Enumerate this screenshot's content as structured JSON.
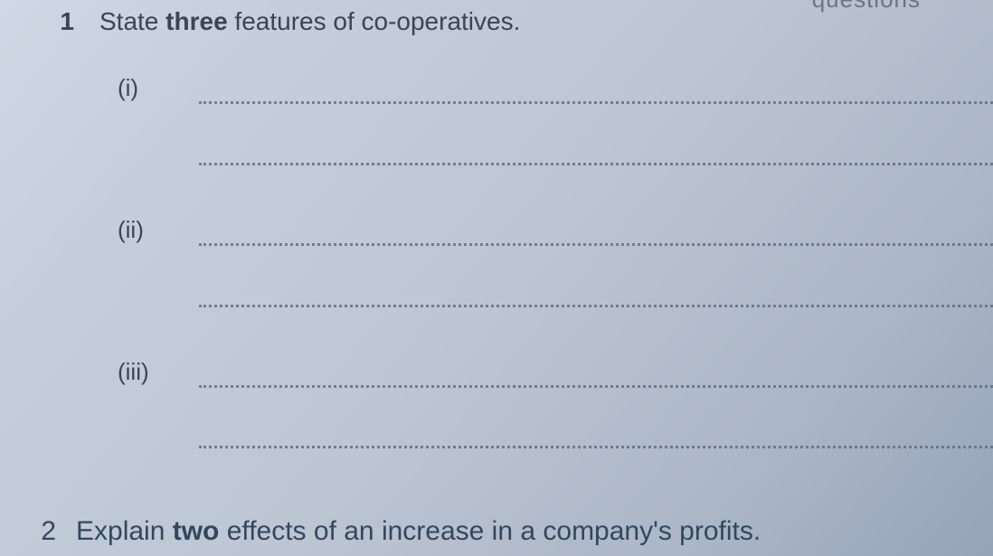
{
  "header_cutoff": "questions",
  "question1": {
    "number": "1",
    "prefix": "State ",
    "bold": "three",
    "suffix": " features of co-operatives."
  },
  "romans": {
    "i": "(i)",
    "ii": "(ii)",
    "iii": "(iii)"
  },
  "question2": {
    "number": "2",
    "prefix": "Explain ",
    "bold": "two",
    "suffix": " effects of an increase in a company's profits."
  },
  "colors": {
    "text": "#3a4556",
    "dots": "#5f6b7e",
    "bg_light": "#d0d8e4",
    "bg_dark": "#96a3b8"
  }
}
